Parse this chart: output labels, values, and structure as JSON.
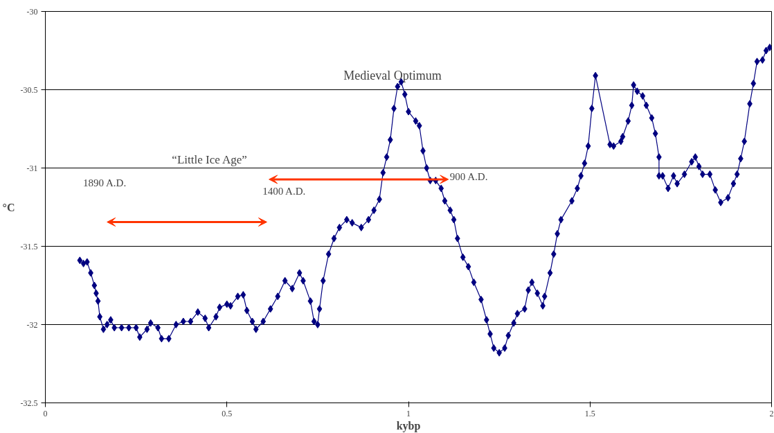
{
  "chart_data": {
    "type": "line",
    "xlabel": "kybp",
    "ylabel": "°C",
    "color": "#000080",
    "marker": "diamond",
    "line_style": "solid",
    "grid": "y",
    "xlim": [
      0,
      2
    ],
    "xticks": [
      0,
      0.5,
      1,
      1.5,
      2
    ],
    "ylim": [
      -32.5,
      -30
    ],
    "yticks": [
      -32.5,
      -32,
      -31.5,
      -31,
      -30.5,
      -30
    ],
    "x": [
      0.095,
      0.105,
      0.115,
      0.125,
      0.135,
      0.14,
      0.145,
      0.15,
      0.16,
      0.17,
      0.18,
      0.19,
      0.21,
      0.23,
      0.25,
      0.26,
      0.28,
      0.29,
      0.31,
      0.32,
      0.34,
      0.36,
      0.38,
      0.4,
      0.42,
      0.44,
      0.45,
      0.47,
      0.48,
      0.5,
      0.51,
      0.53,
      0.545,
      0.555,
      0.57,
      0.58,
      0.6,
      0.62,
      0.64,
      0.66,
      0.68,
      0.7,
      0.71,
      0.73,
      0.74,
      0.75,
      0.755,
      0.765,
      0.78,
      0.795,
      0.81,
      0.83,
      0.845,
      0.87,
      0.89,
      0.905,
      0.92,
      0.93,
      0.94,
      0.95,
      0.96,
      0.97,
      0.98,
      0.99,
      1.0,
      1.02,
      1.03,
      1.04,
      1.05,
      1.06,
      1.075,
      1.09,
      1.1,
      1.115,
      1.125,
      1.135,
      1.15,
      1.165,
      1.18,
      1.2,
      1.215,
      1.225,
      1.235,
      1.25,
      1.265,
      1.275,
      1.29,
      1.3,
      1.32,
      1.33,
      1.34,
      1.355,
      1.37,
      1.375,
      1.39,
      1.4,
      1.41,
      1.42,
      1.45,
      1.465,
      1.475,
      1.485,
      1.495,
      1.505,
      1.515,
      1.555,
      1.565,
      1.585,
      1.59,
      1.605,
      1.615,
      1.62,
      1.63,
      1.645,
      1.655,
      1.67,
      1.68,
      1.69,
      1.69,
      1.7,
      1.715,
      1.73,
      1.74,
      1.76,
      1.78,
      1.79,
      1.8,
      1.81,
      1.83,
      1.845,
      1.86,
      1.88,
      1.895,
      1.905,
      1.915,
      1.925,
      1.94,
      1.95,
      1.96,
      1.975,
      1.985,
      1.995
    ],
    "values": [
      -31.59,
      -31.61,
      -31.6,
      -31.67,
      -31.75,
      -31.8,
      -31.85,
      -31.95,
      -32.03,
      -32.0,
      -31.97,
      -32.02,
      -32.02,
      -32.02,
      -32.02,
      -32.08,
      -32.03,
      -31.99,
      -32.02,
      -32.09,
      -32.09,
      -32.0,
      -31.98,
      -31.98,
      -31.92,
      -31.96,
      -32.02,
      -31.95,
      -31.89,
      -31.87,
      -31.88,
      -31.82,
      -31.81,
      -31.91,
      -31.98,
      -32.03,
      -31.98,
      -31.9,
      -31.82,
      -31.72,
      -31.77,
      -31.67,
      -31.72,
      -31.85,
      -31.98,
      -32.0,
      -31.9,
      -31.72,
      -31.55,
      -31.45,
      -31.38,
      -31.33,
      -31.35,
      -31.38,
      -31.33,
      -31.27,
      -31.2,
      -31.03,
      -30.93,
      -30.82,
      -30.62,
      -30.48,
      -30.45,
      -30.53,
      -30.64,
      -30.7,
      -30.73,
      -30.89,
      -31.0,
      -31.08,
      -31.08,
      -31.13,
      -31.21,
      -31.27,
      -31.33,
      -31.45,
      -31.57,
      -31.63,
      -31.73,
      -31.84,
      -31.97,
      -32.06,
      -32.15,
      -32.18,
      -32.15,
      -32.07,
      -31.99,
      -31.93,
      -31.9,
      -31.78,
      -31.73,
      -31.8,
      -31.88,
      -31.82,
      -31.67,
      -31.55,
      -31.42,
      -31.33,
      -31.21,
      -31.13,
      -31.05,
      -30.97,
      -30.86,
      -30.62,
      -30.41,
      -30.85,
      -30.86,
      -30.83,
      -30.8,
      -30.7,
      -30.6,
      -30.47,
      -30.51,
      -30.54,
      -30.6,
      -30.68,
      -30.78,
      -30.93,
      -31.05,
      -31.05,
      -31.13,
      -31.05,
      -31.1,
      -31.04,
      -30.96,
      -30.93,
      -30.99,
      -31.04,
      -31.04,
      -31.14,
      -31.22,
      -31.19,
      -31.1,
      -31.04,
      -30.94,
      -30.83,
      -30.59,
      -30.46,
      -30.32,
      -30.31,
      -30.25,
      -30.23
    ],
    "annotations": [
      "Medieval Optimum",
      "“Little Ice Age”",
      "1890 A.D.",
      "1400 A.D.",
      "900 A.D."
    ]
  }
}
